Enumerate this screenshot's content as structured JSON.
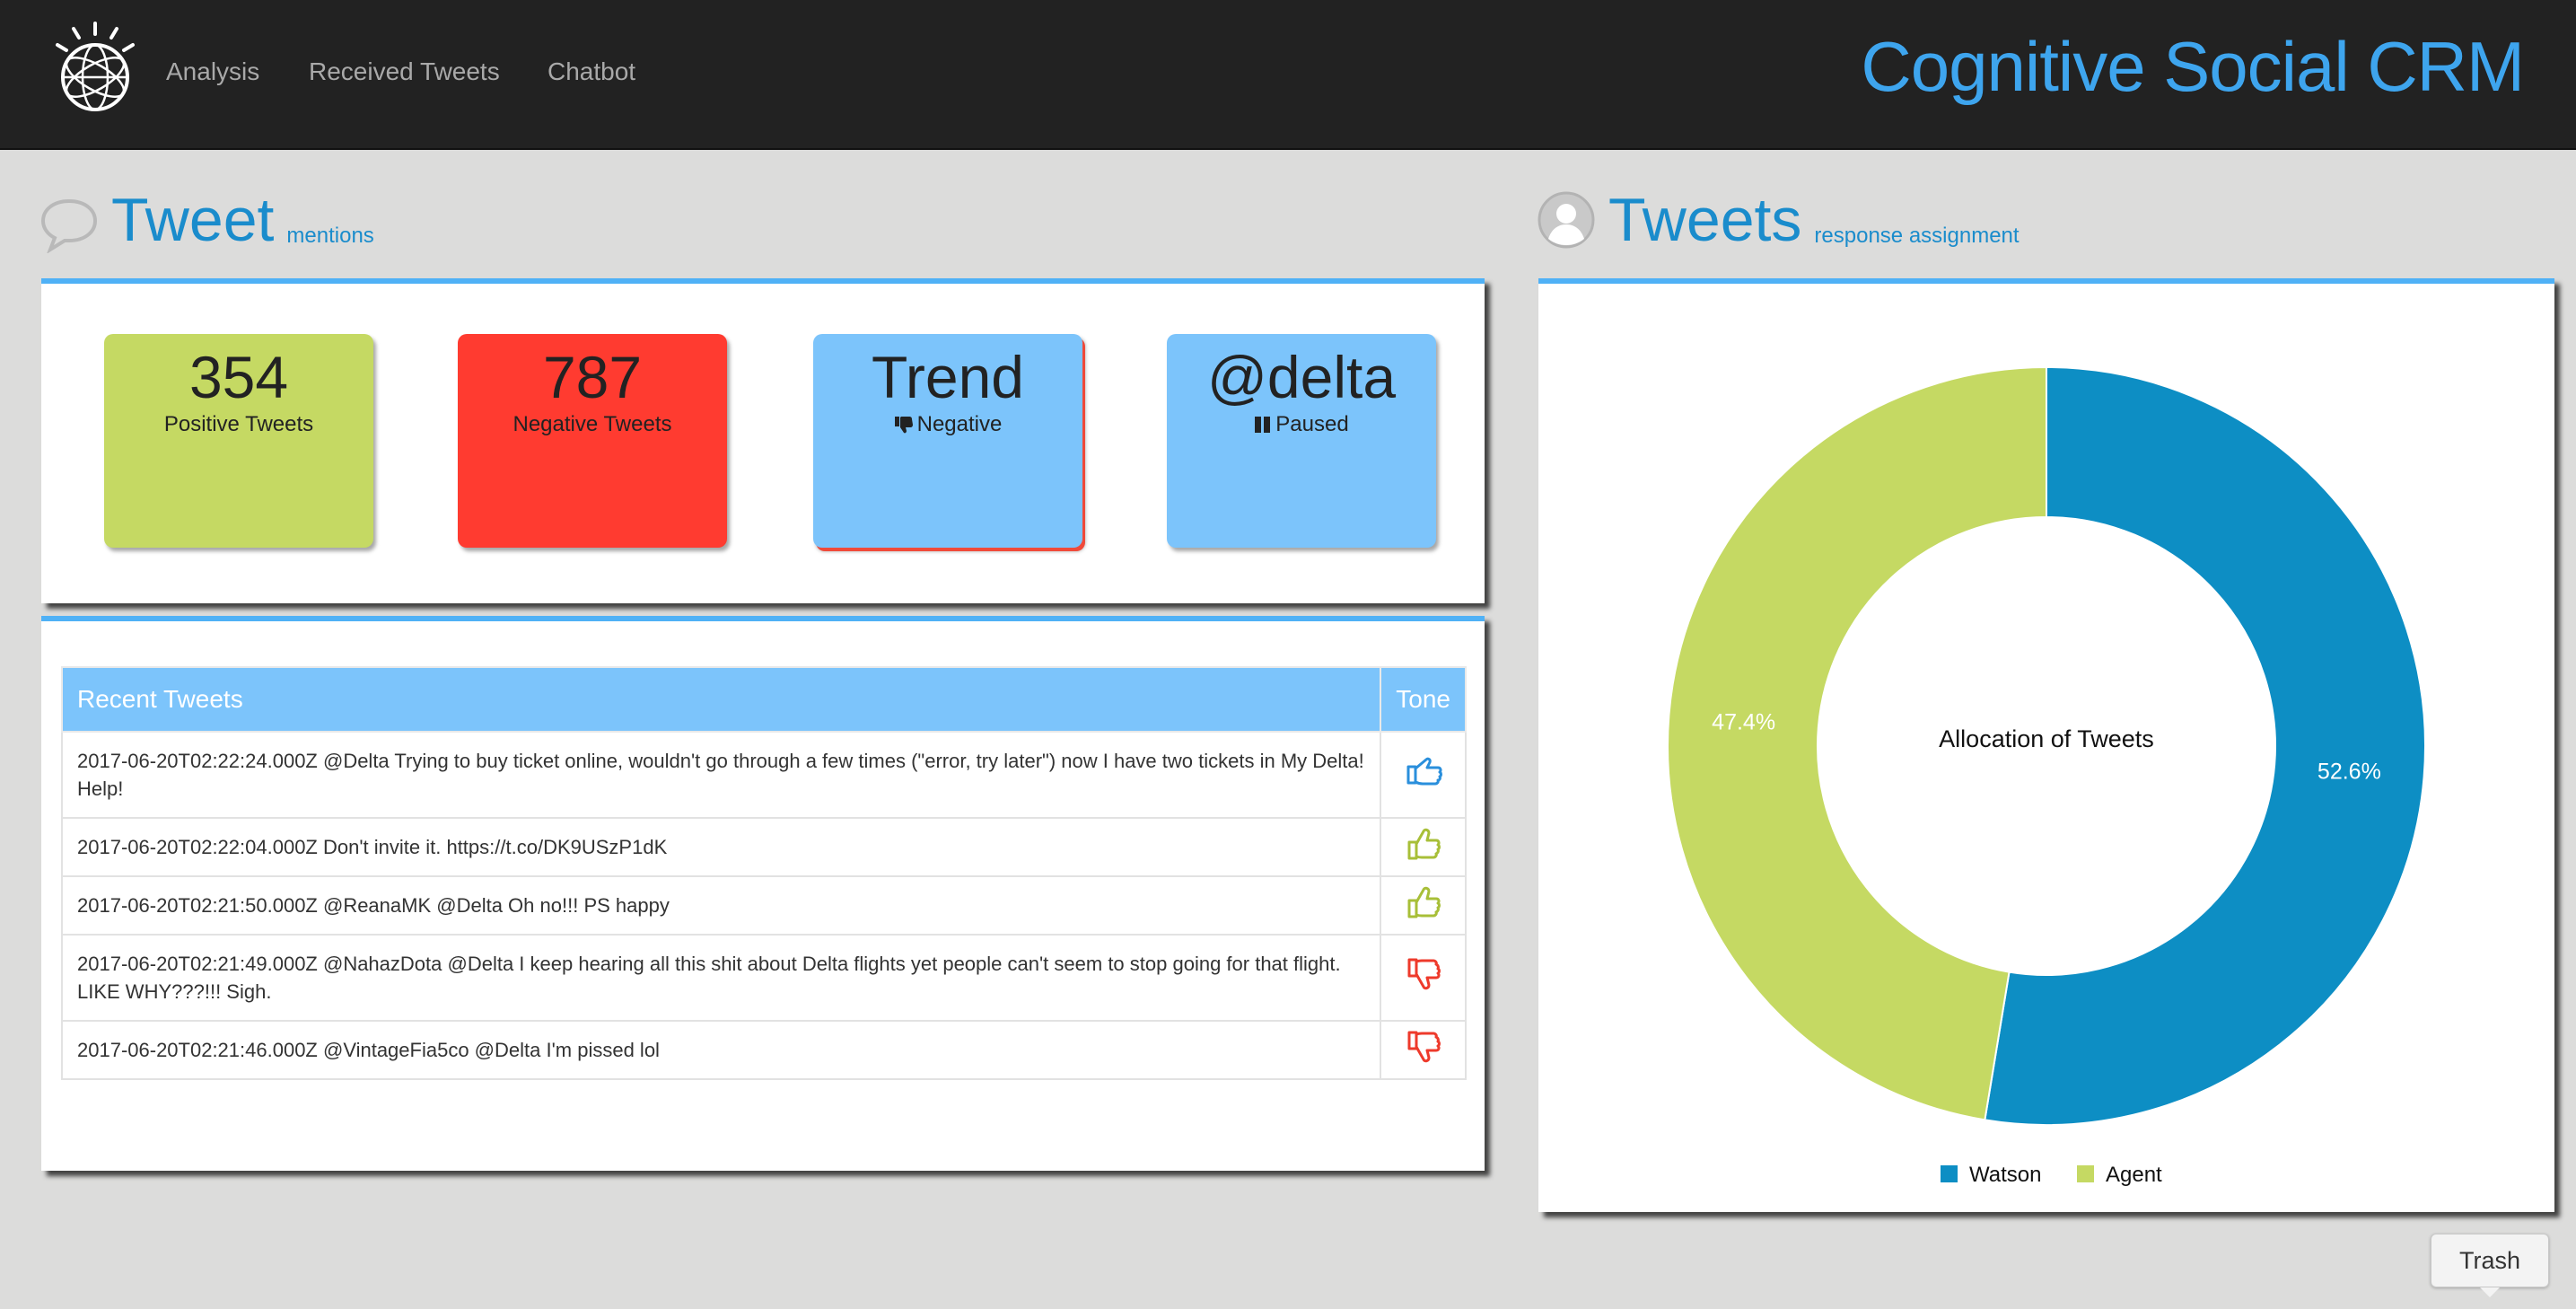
{
  "navbar": {
    "brand": "Cognitive Social CRM",
    "links": [
      "Analysis",
      "Received Tweets",
      "Chatbot"
    ]
  },
  "mentions": {
    "title": "Tweet",
    "subtitle": "mentions",
    "stats": [
      {
        "value": "354",
        "label": "Positive Tweets",
        "color": "#c5d963"
      },
      {
        "value": "787",
        "label": "Negative Tweets",
        "color": "#ff3b30"
      },
      {
        "value": "Trend",
        "label": "Negative",
        "icon": "thumbs-down-icon",
        "color": "#7cc4fb"
      },
      {
        "value": "@delta",
        "label": "Paused",
        "icon": "pause-icon",
        "color": "#7cc4fb"
      }
    ]
  },
  "recent": {
    "headers": {
      "tweets": "Recent Tweets",
      "tone": "Tone"
    },
    "rows": [
      {
        "text": "2017-06-20T02:22:24.000Z @Delta Trying to buy ticket online, wouldn't go through a few times (\"error, try later\") now I have two tickets in My Delta! Help!",
        "tone": "neutral",
        "icon": "thumbs-side-icon"
      },
      {
        "text": "2017-06-20T02:22:04.000Z Don't invite it. https://t.co/DK9USzP1dK",
        "tone": "positive",
        "icon": "thumbs-up-icon"
      },
      {
        "text": "2017-06-20T02:21:50.000Z @ReanaMK @Delta Oh no!!! PS happy",
        "tone": "positive",
        "icon": "thumbs-up-icon"
      },
      {
        "text": "2017-06-20T02:21:49.000Z @NahazDota @Delta I keep hearing all this shit about Delta flights yet people can't seem to stop going for that flight. LIKE WHY???!!! Sigh.",
        "tone": "negative",
        "icon": "thumbs-down-icon"
      },
      {
        "text": "2017-06-20T02:21:46.000Z @VintageFia5co @Delta I'm pissed lol",
        "tone": "negative",
        "icon": "thumbs-down-icon"
      }
    ]
  },
  "assignment": {
    "title": "Tweets",
    "subtitle": "response assignment"
  },
  "chart_data": {
    "type": "pie",
    "donut": true,
    "center_label": "Allocation of Tweets",
    "slices": [
      {
        "name": "Watson",
        "value": 52.6,
        "label": "52.6%",
        "color": "#0d8ec4"
      },
      {
        "name": "Agent",
        "value": 47.4,
        "label": "47.4%",
        "color": "#c5d963"
      }
    ],
    "legend_position": "bottom"
  },
  "trash_label": "Trash"
}
